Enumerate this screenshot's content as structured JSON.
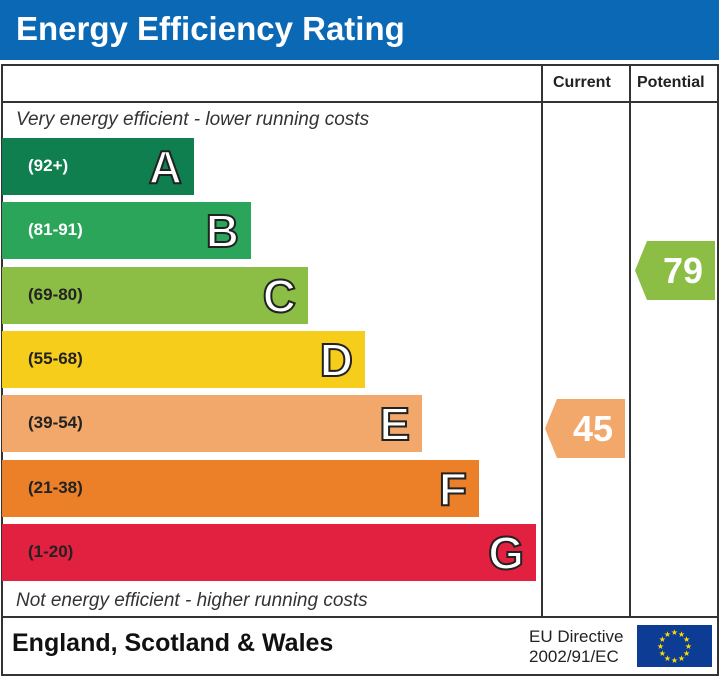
{
  "title": "Energy Efficiency Rating",
  "columns": {
    "current": "Current",
    "potential": "Potential"
  },
  "top_text": "Very energy efficient - lower running costs",
  "bottom_text": "Not energy efficient - higher running costs",
  "footer": {
    "region": "England, Scotland & Wales",
    "directive_line1": "EU Directive",
    "directive_line2": "2002/91/EC"
  },
  "chart_data": {
    "type": "bar",
    "bands": [
      {
        "letter": "A",
        "range": "(92+)",
        "color": "#0f7f4f",
        "text_color": "#ffffff"
      },
      {
        "letter": "B",
        "range": "(81-91)",
        "color": "#2aa55a",
        "text_color": "#ffffff"
      },
      {
        "letter": "C",
        "range": "(69-80)",
        "color": "#8cbd45",
        "text_color": "#222222"
      },
      {
        "letter": "D",
        "range": "(55-68)",
        "color": "#f6cd1a",
        "text_color": "#222222"
      },
      {
        "letter": "E",
        "range": "(39-54)",
        "color": "#f2a86b",
        "text_color": "#222222"
      },
      {
        "letter": "F",
        "range": "(21-38)",
        "color": "#ec8028",
        "text_color": "#222222"
      },
      {
        "letter": "G",
        "range": "(1-20)",
        "color": "#e2203f",
        "text_color": "#222222"
      }
    ],
    "current": {
      "value": "45",
      "band": "E",
      "color": "#f2a86b"
    },
    "potential": {
      "value": "79",
      "band": "C",
      "color": "#8cbd45"
    }
  }
}
